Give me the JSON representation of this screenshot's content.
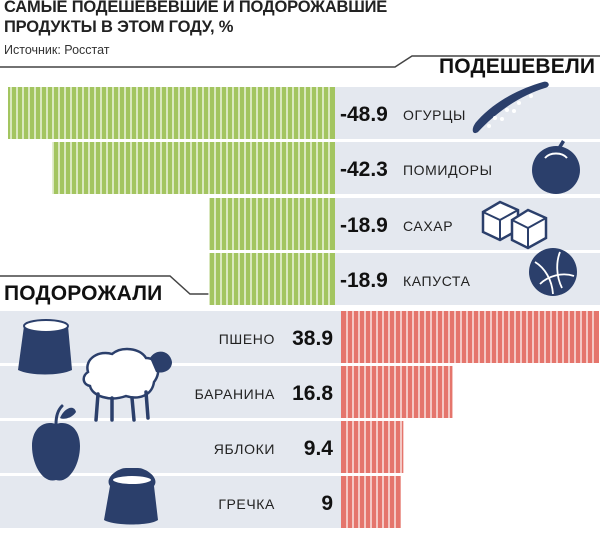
{
  "header": {
    "title_line1": "САМЫЕ ПОДЕШЕВЕВШИЕ И ПОДОРОЖАВШИЕ",
    "title_line2": "ПРОДУКТЫ В ЭТОМ ГОДУ, %",
    "source": "Источник: Росстат"
  },
  "sections": {
    "cheaper_label": "ПОДЕШЕВЕЛИ",
    "pricier_label": "ПОДОРОЖАЛИ"
  },
  "colors": {
    "cheaper_bar": "#a3c560",
    "pricier_bar": "#e5756c",
    "row_band": "#e4e8ef",
    "icon": "#2b3f6b"
  },
  "chart_data": [
    {
      "type": "bar",
      "title": "ПОДЕШЕВЕЛИ",
      "categories": [
        "ОГУРЦЫ",
        "ПОМИДОРЫ",
        "САХАР",
        "КАПУСТА"
      ],
      "values": [
        -48.9,
        -42.3,
        -18.9,
        -18.9
      ],
      "icons": [
        "cucumber-icon",
        "tomato-icon",
        "sugar-cubes-icon",
        "cabbage-icon"
      ]
    },
    {
      "type": "bar",
      "title": "ПОДОРОЖАЛИ",
      "categories": [
        "ПШЕНО",
        "БАРАНИНА",
        "ЯБЛОКИ",
        "ГРЕЧКА"
      ],
      "values": [
        38.9,
        16.8,
        9.4,
        9.0
      ],
      "icons": [
        "millet-sack-icon",
        "sheep-icon",
        "apple-icon",
        "buckwheat-sack-icon"
      ]
    }
  ]
}
